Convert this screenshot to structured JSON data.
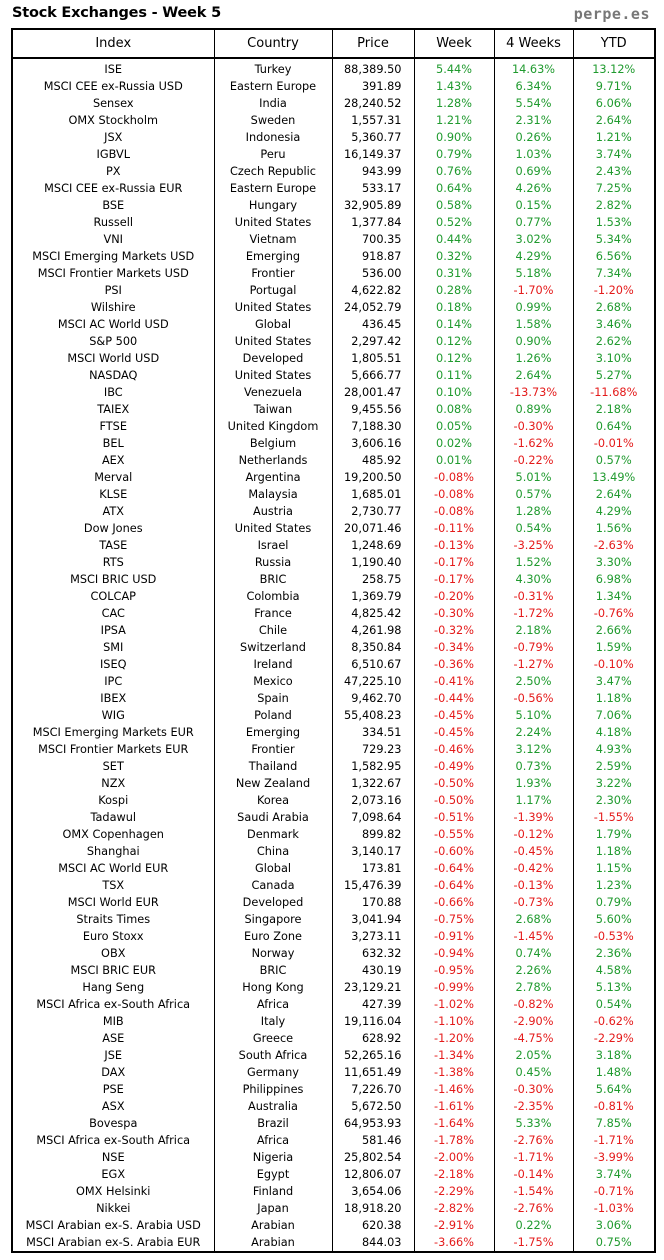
{
  "title": "Stock Exchanges - Week 5",
  "brand": "perpe.es",
  "colors": {
    "positive": "#1f9a2e",
    "negative": "#e41a1a",
    "brand": "#777777"
  },
  "columns": [
    "Index",
    "Country",
    "Price",
    "Week",
    "4 Weeks",
    "YTD"
  ],
  "rows": [
    [
      "ISE",
      "Turkey",
      "88,389.50",
      "5.44%",
      "14.63%",
      "13.12%"
    ],
    [
      "MSCI CEE ex-Russia USD",
      "Eastern Europe",
      "391.89",
      "1.43%",
      "6.34%",
      "9.71%"
    ],
    [
      "Sensex",
      "India",
      "28,240.52",
      "1.28%",
      "5.54%",
      "6.06%"
    ],
    [
      "OMX Stockholm",
      "Sweden",
      "1,557.31",
      "1.21%",
      "2.31%",
      "2.64%"
    ],
    [
      "JSX",
      "Indonesia",
      "5,360.77",
      "0.90%",
      "0.26%",
      "1.21%"
    ],
    [
      "IGBVL",
      "Peru",
      "16,149.37",
      "0.79%",
      "1.03%",
      "3.74%"
    ],
    [
      "PX",
      "Czech Republic",
      "943.99",
      "0.76%",
      "0.69%",
      "2.43%"
    ],
    [
      "MSCI CEE ex-Russia EUR",
      "Eastern Europe",
      "533.17",
      "0.64%",
      "4.26%",
      "7.25%"
    ],
    [
      "BSE",
      "Hungary",
      "32,905.89",
      "0.58%",
      "0.15%",
      "2.82%"
    ],
    [
      "Russell",
      "United States",
      "1,377.84",
      "0.52%",
      "0.77%",
      "1.53%"
    ],
    [
      "VNI",
      "Vietnam",
      "700.35",
      "0.44%",
      "3.02%",
      "5.34%"
    ],
    [
      "MSCI Emerging Markets USD",
      "Emerging",
      "918.87",
      "0.32%",
      "4.29%",
      "6.56%"
    ],
    [
      "MSCI Frontier Markets USD",
      "Frontier",
      "536.00",
      "0.31%",
      "5.18%",
      "7.34%"
    ],
    [
      "PSI",
      "Portugal",
      "4,622.82",
      "0.28%",
      "-1.70%",
      "-1.20%"
    ],
    [
      "Wilshire",
      "United States",
      "24,052.79",
      "0.18%",
      "0.99%",
      "2.68%"
    ],
    [
      "MSCI AC World USD",
      "Global",
      "436.45",
      "0.14%",
      "1.58%",
      "3.46%"
    ],
    [
      "S&P 500",
      "United States",
      "2,297.42",
      "0.12%",
      "0.90%",
      "2.62%"
    ],
    [
      "MSCI World USD",
      "Developed",
      "1,805.51",
      "0.12%",
      "1.26%",
      "3.10%"
    ],
    [
      "NASDAQ",
      "United States",
      "5,666.77",
      "0.11%",
      "2.64%",
      "5.27%"
    ],
    [
      "IBC",
      "Venezuela",
      "28,001.47",
      "0.10%",
      "-13.73%",
      "-11.68%"
    ],
    [
      "TAIEX",
      "Taiwan",
      "9,455.56",
      "0.08%",
      "0.89%",
      "2.18%"
    ],
    [
      "FTSE",
      "United Kingdom",
      "7,188.30",
      "0.05%",
      "-0.30%",
      "0.64%"
    ],
    [
      "BEL",
      "Belgium",
      "3,606.16",
      "0.02%",
      "-1.62%",
      "-0.01%"
    ],
    [
      "AEX",
      "Netherlands",
      "485.92",
      "0.01%",
      "-0.22%",
      "0.57%"
    ],
    [
      "Merval",
      "Argentina",
      "19,200.50",
      "-0.08%",
      "5.01%",
      "13.49%"
    ],
    [
      "KLSE",
      "Malaysia",
      "1,685.01",
      "-0.08%",
      "0.57%",
      "2.64%"
    ],
    [
      "ATX",
      "Austria",
      "2,730.77",
      "-0.08%",
      "1.28%",
      "4.29%"
    ],
    [
      "Dow Jones",
      "United States",
      "20,071.46",
      "-0.11%",
      "0.54%",
      "1.56%"
    ],
    [
      "TASE",
      "Israel",
      "1,248.69",
      "-0.13%",
      "-3.25%",
      "-2.63%"
    ],
    [
      "RTS",
      "Russia",
      "1,190.40",
      "-0.17%",
      "1.52%",
      "3.30%"
    ],
    [
      "MSCI BRIC USD",
      "BRIC",
      "258.75",
      "-0.17%",
      "4.30%",
      "6.98%"
    ],
    [
      "COLCAP",
      "Colombia",
      "1,369.79",
      "-0.20%",
      "-0.31%",
      "1.34%"
    ],
    [
      "CAC",
      "France",
      "4,825.42",
      "-0.30%",
      "-1.72%",
      "-0.76%"
    ],
    [
      "IPSA",
      "Chile",
      "4,261.98",
      "-0.32%",
      "2.18%",
      "2.66%"
    ],
    [
      "SMI",
      "Switzerland",
      "8,350.84",
      "-0.34%",
      "-0.79%",
      "1.59%"
    ],
    [
      "ISEQ",
      "Ireland",
      "6,510.67",
      "-0.36%",
      "-1.27%",
      "-0.10%"
    ],
    [
      "IPC",
      "Mexico",
      "47,225.10",
      "-0.41%",
      "2.50%",
      "3.47%"
    ],
    [
      "IBEX",
      "Spain",
      "9,462.70",
      "-0.44%",
      "-0.56%",
      "1.18%"
    ],
    [
      "WIG",
      "Poland",
      "55,408.23",
      "-0.45%",
      "5.10%",
      "7.06%"
    ],
    [
      "MSCI Emerging Markets EUR",
      "Emerging",
      "334.51",
      "-0.45%",
      "2.24%",
      "4.18%"
    ],
    [
      "MSCI Frontier Markets EUR",
      "Frontier",
      "729.23",
      "-0.46%",
      "3.12%",
      "4.93%"
    ],
    [
      "SET",
      "Thailand",
      "1,582.95",
      "-0.49%",
      "0.73%",
      "2.59%"
    ],
    [
      "NZX",
      "New Zealand",
      "1,322.67",
      "-0.50%",
      "1.93%",
      "3.22%"
    ],
    [
      "Kospi",
      "Korea",
      "2,073.16",
      "-0.50%",
      "1.17%",
      "2.30%"
    ],
    [
      "Tadawul",
      "Saudi Arabia",
      "7,098.64",
      "-0.51%",
      "-1.39%",
      "-1.55%"
    ],
    [
      "OMX Copenhagen",
      "Denmark",
      "899.82",
      "-0.55%",
      "-0.12%",
      "1.79%"
    ],
    [
      "Shanghai",
      "China",
      "3,140.17",
      "-0.60%",
      "-0.45%",
      "1.18%"
    ],
    [
      "MSCI AC World EUR",
      "Global",
      "173.81",
      "-0.64%",
      "-0.42%",
      "1.15%"
    ],
    [
      "TSX",
      "Canada",
      "15,476.39",
      "-0.64%",
      "-0.13%",
      "1.23%"
    ],
    [
      "MSCI World EUR",
      "Developed",
      "170.88",
      "-0.66%",
      "-0.73%",
      "0.79%"
    ],
    [
      "Straits Times",
      "Singapore",
      "3,041.94",
      "-0.75%",
      "2.68%",
      "5.60%"
    ],
    [
      "Euro Stoxx",
      "Euro Zone",
      "3,273.11",
      "-0.91%",
      "-1.45%",
      "-0.53%"
    ],
    [
      "OBX",
      "Norway",
      "632.32",
      "-0.94%",
      "0.74%",
      "2.36%"
    ],
    [
      "MSCI BRIC EUR",
      "BRIC",
      "430.19",
      "-0.95%",
      "2.26%",
      "4.58%"
    ],
    [
      "Hang Seng",
      "Hong Kong",
      "23,129.21",
      "-0.99%",
      "2.78%",
      "5.13%"
    ],
    [
      "MSCI Africa ex-South Africa",
      "Africa",
      "427.39",
      "-1.02%",
      "-0.82%",
      "0.54%"
    ],
    [
      "MIB",
      "Italy",
      "19,116.04",
      "-1.10%",
      "-2.90%",
      "-0.62%"
    ],
    [
      "ASE",
      "Greece",
      "628.92",
      "-1.20%",
      "-4.75%",
      "-2.29%"
    ],
    [
      "JSE",
      "South Africa",
      "52,265.16",
      "-1.34%",
      "2.05%",
      "3.18%"
    ],
    [
      "DAX",
      "Germany",
      "11,651.49",
      "-1.38%",
      "0.45%",
      "1.48%"
    ],
    [
      "PSE",
      "Philippines",
      "7,226.70",
      "-1.46%",
      "-0.30%",
      "5.64%"
    ],
    [
      "ASX",
      "Australia",
      "5,672.50",
      "-1.61%",
      "-2.35%",
      "-0.81%"
    ],
    [
      "Bovespa",
      "Brazil",
      "64,953.93",
      "-1.64%",
      "5.33%",
      "7.85%"
    ],
    [
      "MSCI Africa ex-South Africa",
      "Africa",
      "581.46",
      "-1.78%",
      "-2.76%",
      "-1.71%"
    ],
    [
      "NSE",
      "Nigeria",
      "25,802.54",
      "-2.00%",
      "-1.71%",
      "-3.99%"
    ],
    [
      "EGX",
      "Egypt",
      "12,806.07",
      "-2.18%",
      "-0.14%",
      "3.74%"
    ],
    [
      "OMX Helsinki",
      "Finland",
      "3,654.06",
      "-2.29%",
      "-1.54%",
      "-0.71%"
    ],
    [
      "Nikkei",
      "Japan",
      "18,918.20",
      "-2.82%",
      "-2.76%",
      "-1.03%"
    ],
    [
      "MSCI Arabian ex-S. Arabia USD",
      "Arabian",
      "620.38",
      "-2.91%",
      "0.22%",
      "3.06%"
    ],
    [
      "MSCI Arabian ex-S. Arabia EUR",
      "Arabian",
      "844.03",
      "-3.66%",
      "-1.75%",
      "0.75%"
    ]
  ]
}
